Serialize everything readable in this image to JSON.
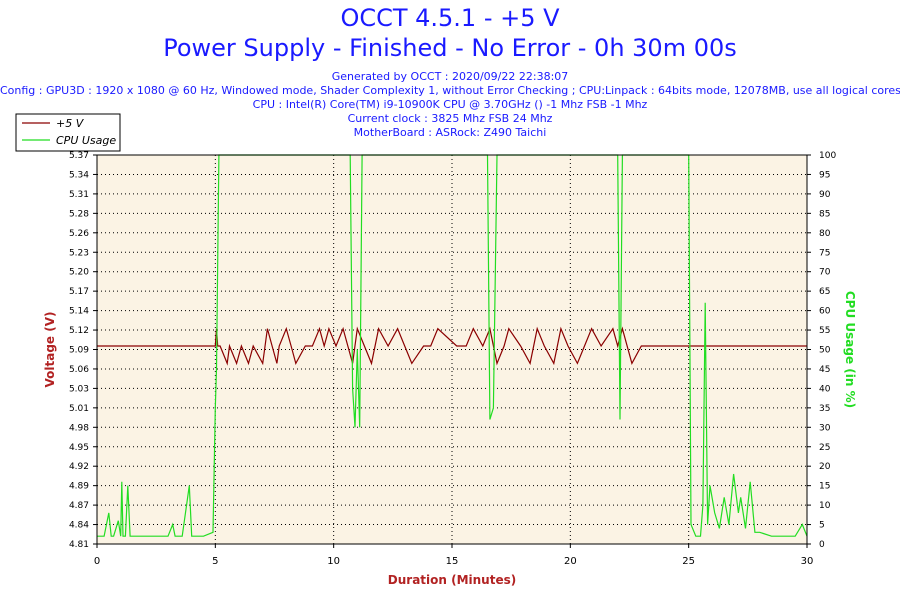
{
  "header": {
    "title": "OCCT 4.5.1 - +5 V",
    "subtitle": "Power Supply - Finished - No Error - 0h 30m 00s",
    "generated": "Generated by OCCT : 2020/09/22 22:38:07",
    "config": "Config : GPU3D : 1920 x 1080 @ 60 Hz, Windowed mode, Shader Complexity 1, without Error Checking ; CPU:Linpack : 64bits mode, 12078MB, use all logical cores",
    "cpu": "CPU : Intel(R) Core(TM) i9-10900K CPU @ 3.70GHz () -1 Mhz FSB -1 Mhz",
    "clock": "Current clock : 3825 Mhz FSB 24 Mhz",
    "motherboard": "MotherBoard : ASRock: Z490 Taichi"
  },
  "colors": {
    "title": "#1a1aff",
    "voltage": "#8b0000",
    "cpu": "#22dd22",
    "plot_bg": "#fbf3e4",
    "axis_label": "#b22222"
  },
  "chart_data": {
    "type": "line",
    "xlabel": "Duration (Minutes)",
    "ylabel": "Voltage (V)",
    "y2label": "CPU Usage (in %)",
    "xlim": [
      0,
      30
    ],
    "ylim": [
      4.81,
      5.37
    ],
    "y2lim": [
      0,
      100
    ],
    "x_ticks": [
      0,
      5,
      10,
      15,
      20,
      25,
      30
    ],
    "y_ticks": [
      4.81,
      4.84,
      4.87,
      4.89,
      4.92,
      4.95,
      4.98,
      5.01,
      5.03,
      5.06,
      5.09,
      5.12,
      5.14,
      5.17,
      5.2,
      5.23,
      5.26,
      5.28,
      5.31,
      5.34,
      5.37
    ],
    "y2_ticks": [
      0,
      5,
      10,
      15,
      20,
      25,
      30,
      35,
      40,
      45,
      50,
      55,
      60,
      65,
      70,
      75,
      80,
      85,
      90,
      95,
      100
    ],
    "legend": "top-left",
    "series": [
      {
        "name": "+5 V",
        "axis": "left",
        "x": [
          0,
          5.0,
          5.05,
          5.1,
          5.2,
          5.5,
          5.6,
          5.9,
          6.1,
          6.4,
          6.6,
          7.0,
          7.2,
          7.4,
          7.6,
          7.7,
          8.0,
          8.2,
          8.4,
          8.8,
          9.1,
          9.4,
          9.6,
          9.8,
          10.1,
          10.4,
          10.8,
          11.0,
          11.3,
          11.6,
          11.9,
          12.3,
          12.7,
          13.0,
          13.3,
          13.8,
          14.1,
          14.4,
          15.2,
          15.6,
          15.9,
          16.3,
          16.6,
          16.9,
          17.2,
          17.4,
          17.9,
          18.3,
          18.6,
          18.9,
          19.3,
          19.6,
          19.9,
          20.3,
          20.6,
          20.9,
          21.3,
          21.8,
          22.0,
          22.2,
          22.6,
          23.0,
          23.4,
          23.9,
          24.5,
          25.0,
          25.5,
          26.0,
          27.0,
          28.0,
          29.0,
          30.0
        ],
        "y": [
          5.095,
          5.095,
          5.12,
          5.095,
          5.095,
          5.07,
          5.095,
          5.07,
          5.095,
          5.07,
          5.095,
          5.07,
          5.12,
          5.095,
          5.07,
          5.095,
          5.12,
          5.095,
          5.07,
          5.095,
          5.095,
          5.12,
          5.095,
          5.12,
          5.095,
          5.12,
          5.07,
          5.12,
          5.095,
          5.07,
          5.12,
          5.095,
          5.12,
          5.095,
          5.07,
          5.095,
          5.095,
          5.12,
          5.095,
          5.095,
          5.12,
          5.095,
          5.12,
          5.07,
          5.095,
          5.12,
          5.095,
          5.07,
          5.12,
          5.095,
          5.07,
          5.12,
          5.095,
          5.07,
          5.095,
          5.12,
          5.095,
          5.12,
          5.095,
          5.12,
          5.07,
          5.095,
          5.095,
          5.095,
          5.095,
          5.095,
          5.095,
          5.095,
          5.095,
          5.095,
          5.095,
          5.095
        ]
      },
      {
        "name": "CPU Usage",
        "axis": "right",
        "x": [
          0,
          0.3,
          0.5,
          0.6,
          0.7,
          0.9,
          1.0,
          1.05,
          1.1,
          1.2,
          1.3,
          1.4,
          1.6,
          2.0,
          2.5,
          3.0,
          3.2,
          3.3,
          3.6,
          3.9,
          4.0,
          4.1,
          4.5,
          4.9,
          5.0,
          5.05,
          5.15,
          5.3,
          10.7,
          10.8,
          10.9,
          11.0,
          11.1,
          11.2,
          16.5,
          16.6,
          16.75,
          16.9,
          22.0,
          22.1,
          22.2,
          25.0,
          25.1,
          25.3,
          25.5,
          25.6,
          25.7,
          25.8,
          25.9,
          26.1,
          26.3,
          26.5,
          26.7,
          26.9,
          27.1,
          27.2,
          27.4,
          27.6,
          27.8,
          28.0,
          28.5,
          29.0,
          29.5,
          29.8,
          30.0
        ],
        "y": [
          2,
          2,
          8,
          2,
          2,
          6,
          2,
          16,
          2,
          2,
          15,
          2,
          2,
          2,
          2,
          2,
          5,
          2,
          2,
          15,
          2,
          2,
          2,
          3,
          35,
          45,
          100,
          100,
          100,
          40,
          30,
          50,
          30,
          100,
          100,
          32,
          35,
          100,
          100,
          32,
          100,
          100,
          5,
          2,
          2,
          10,
          62,
          5,
          15,
          8,
          4,
          12,
          5,
          18,
          8,
          12,
          4,
          16,
          3,
          3,
          2,
          2,
          2,
          5,
          2
        ]
      }
    ]
  }
}
